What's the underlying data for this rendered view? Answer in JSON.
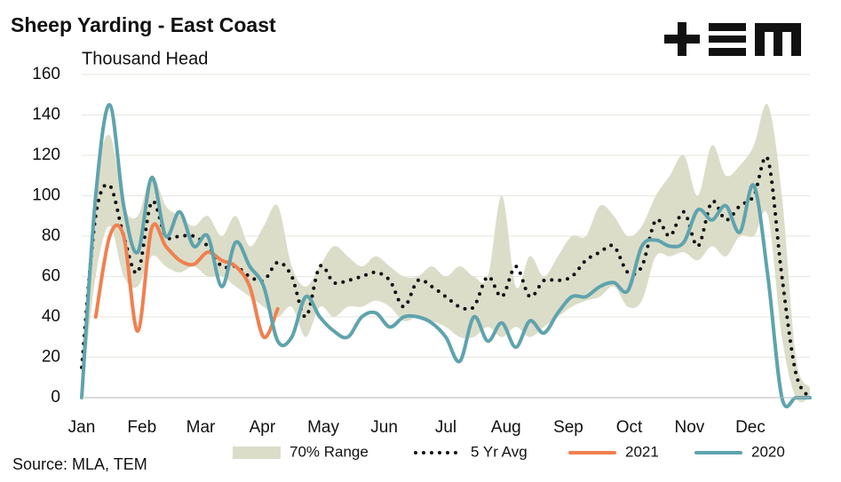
{
  "chart_data": {
    "type": "line",
    "title": "Sheep Yarding - East Coast",
    "subtitle": "Thousand Head",
    "source": "Source: MLA, TEM",
    "x": [
      0,
      1,
      2,
      3,
      4,
      5,
      6,
      7,
      8,
      9,
      10,
      11,
      12,
      13,
      14,
      15,
      16,
      17,
      18,
      19,
      20,
      21,
      22,
      23,
      24,
      25,
      26,
      27,
      28,
      29,
      30,
      31,
      32,
      33,
      34,
      35,
      36,
      37,
      38,
      39,
      40,
      41,
      42,
      43,
      44,
      45,
      46,
      47,
      48,
      49,
      50,
      51,
      52
    ],
    "xlim": [
      0,
      52
    ],
    "xticks": [
      {
        "value": 0,
        "label": "Jan"
      },
      {
        "value": 4.3,
        "label": "Feb"
      },
      {
        "value": 8.5,
        "label": "Mar"
      },
      {
        "value": 12.9,
        "label": "Apr"
      },
      {
        "value": 17.25,
        "label": "May"
      },
      {
        "value": 21.6,
        "label": "Jun"
      },
      {
        "value": 26,
        "label": "Jul"
      },
      {
        "value": 30.3,
        "label": "Aug"
      },
      {
        "value": 34.75,
        "label": "Sep"
      },
      {
        "value": 39.1,
        "label": "Oct"
      },
      {
        "value": 43.4,
        "label": "Nov"
      },
      {
        "value": 47.75,
        "label": "Dec"
      }
    ],
    "ylim": [
      0,
      160
    ],
    "yticks": [
      0,
      20,
      40,
      60,
      80,
      100,
      120,
      140,
      160
    ],
    "grid": true,
    "legend": "bottom",
    "series": [
      {
        "name": "70% Range",
        "color": "#dbddc9",
        "style": "band",
        "values": [
          20,
          105,
          130,
          95,
          90,
          110,
          95,
          90,
          85,
          90,
          80,
          90,
          75,
          85,
          95,
          65,
          55,
          65,
          75,
          70,
          65,
          70,
          65,
          60,
          60,
          65,
          60,
          65,
          60,
          60,
          100,
          55,
          70,
          60,
          70,
          80,
          80,
          95,
          90,
          80,
          85,
          100,
          110,
          120,
          100,
          125,
          110,
          115,
          125,
          145,
          100,
          20,
          5
        ],
        "low": [
          0,
          60,
          85,
          60,
          55,
          70,
          65,
          62,
          65,
          60,
          60,
          55,
          50,
          45,
          40,
          45,
          30,
          45,
          40,
          45,
          45,
          48,
          45,
          38,
          40,
          38,
          35,
          30,
          30,
          35,
          30,
          35,
          30,
          35,
          40,
          45,
          48,
          50,
          55,
          45,
          48,
          70,
          70,
          72,
          68,
          75,
          70,
          80,
          80,
          90,
          30,
          0,
          0
        ]
      },
      {
        "name": "5 Yr Avg",
        "color": "#111111",
        "style": "dotted",
        "values": [
          15,
          90,
          105,
          80,
          62,
          97,
          80,
          80,
          80,
          75,
          65,
          65,
          60,
          58,
          67,
          60,
          40,
          65,
          57,
          58,
          60,
          62,
          58,
          45,
          58,
          55,
          50,
          45,
          45,
          60,
          50,
          65,
          50,
          58,
          58,
          60,
          68,
          72,
          75,
          62,
          65,
          88,
          80,
          92,
          75,
          97,
          88,
          95,
          100,
          118,
          60,
          12,
          0
        ]
      },
      {
        "name": "2021",
        "color": "#f0804f",
        "style": "solid",
        "values": [
          null,
          40,
          80,
          80,
          33,
          84,
          75,
          68,
          66,
          72,
          68,
          65,
          55,
          30,
          44,
          null,
          null,
          null,
          null,
          null,
          null,
          null,
          null,
          null,
          null,
          null,
          null,
          null,
          null,
          null,
          null,
          null,
          null,
          null,
          null,
          null,
          null,
          null,
          null,
          null,
          null,
          null,
          null,
          null,
          null,
          null,
          null,
          null,
          null,
          null,
          null,
          null,
          null
        ]
      },
      {
        "name": "2020",
        "color": "#5fa3ad",
        "style": "solid",
        "values": [
          0,
          100,
          145,
          95,
          72,
          109,
          80,
          92,
          75,
          80,
          55,
          77,
          65,
          55,
          28,
          30,
          50,
          40,
          33,
          30,
          40,
          42,
          35,
          40,
          40,
          37,
          30,
          18,
          40,
          28,
          37,
          25,
          38,
          32,
          42,
          50,
          50,
          55,
          57,
          53,
          75,
          78,
          75,
          77,
          93,
          88,
          95,
          82,
          105,
          60,
          0,
          0,
          0
        ]
      }
    ]
  }
}
